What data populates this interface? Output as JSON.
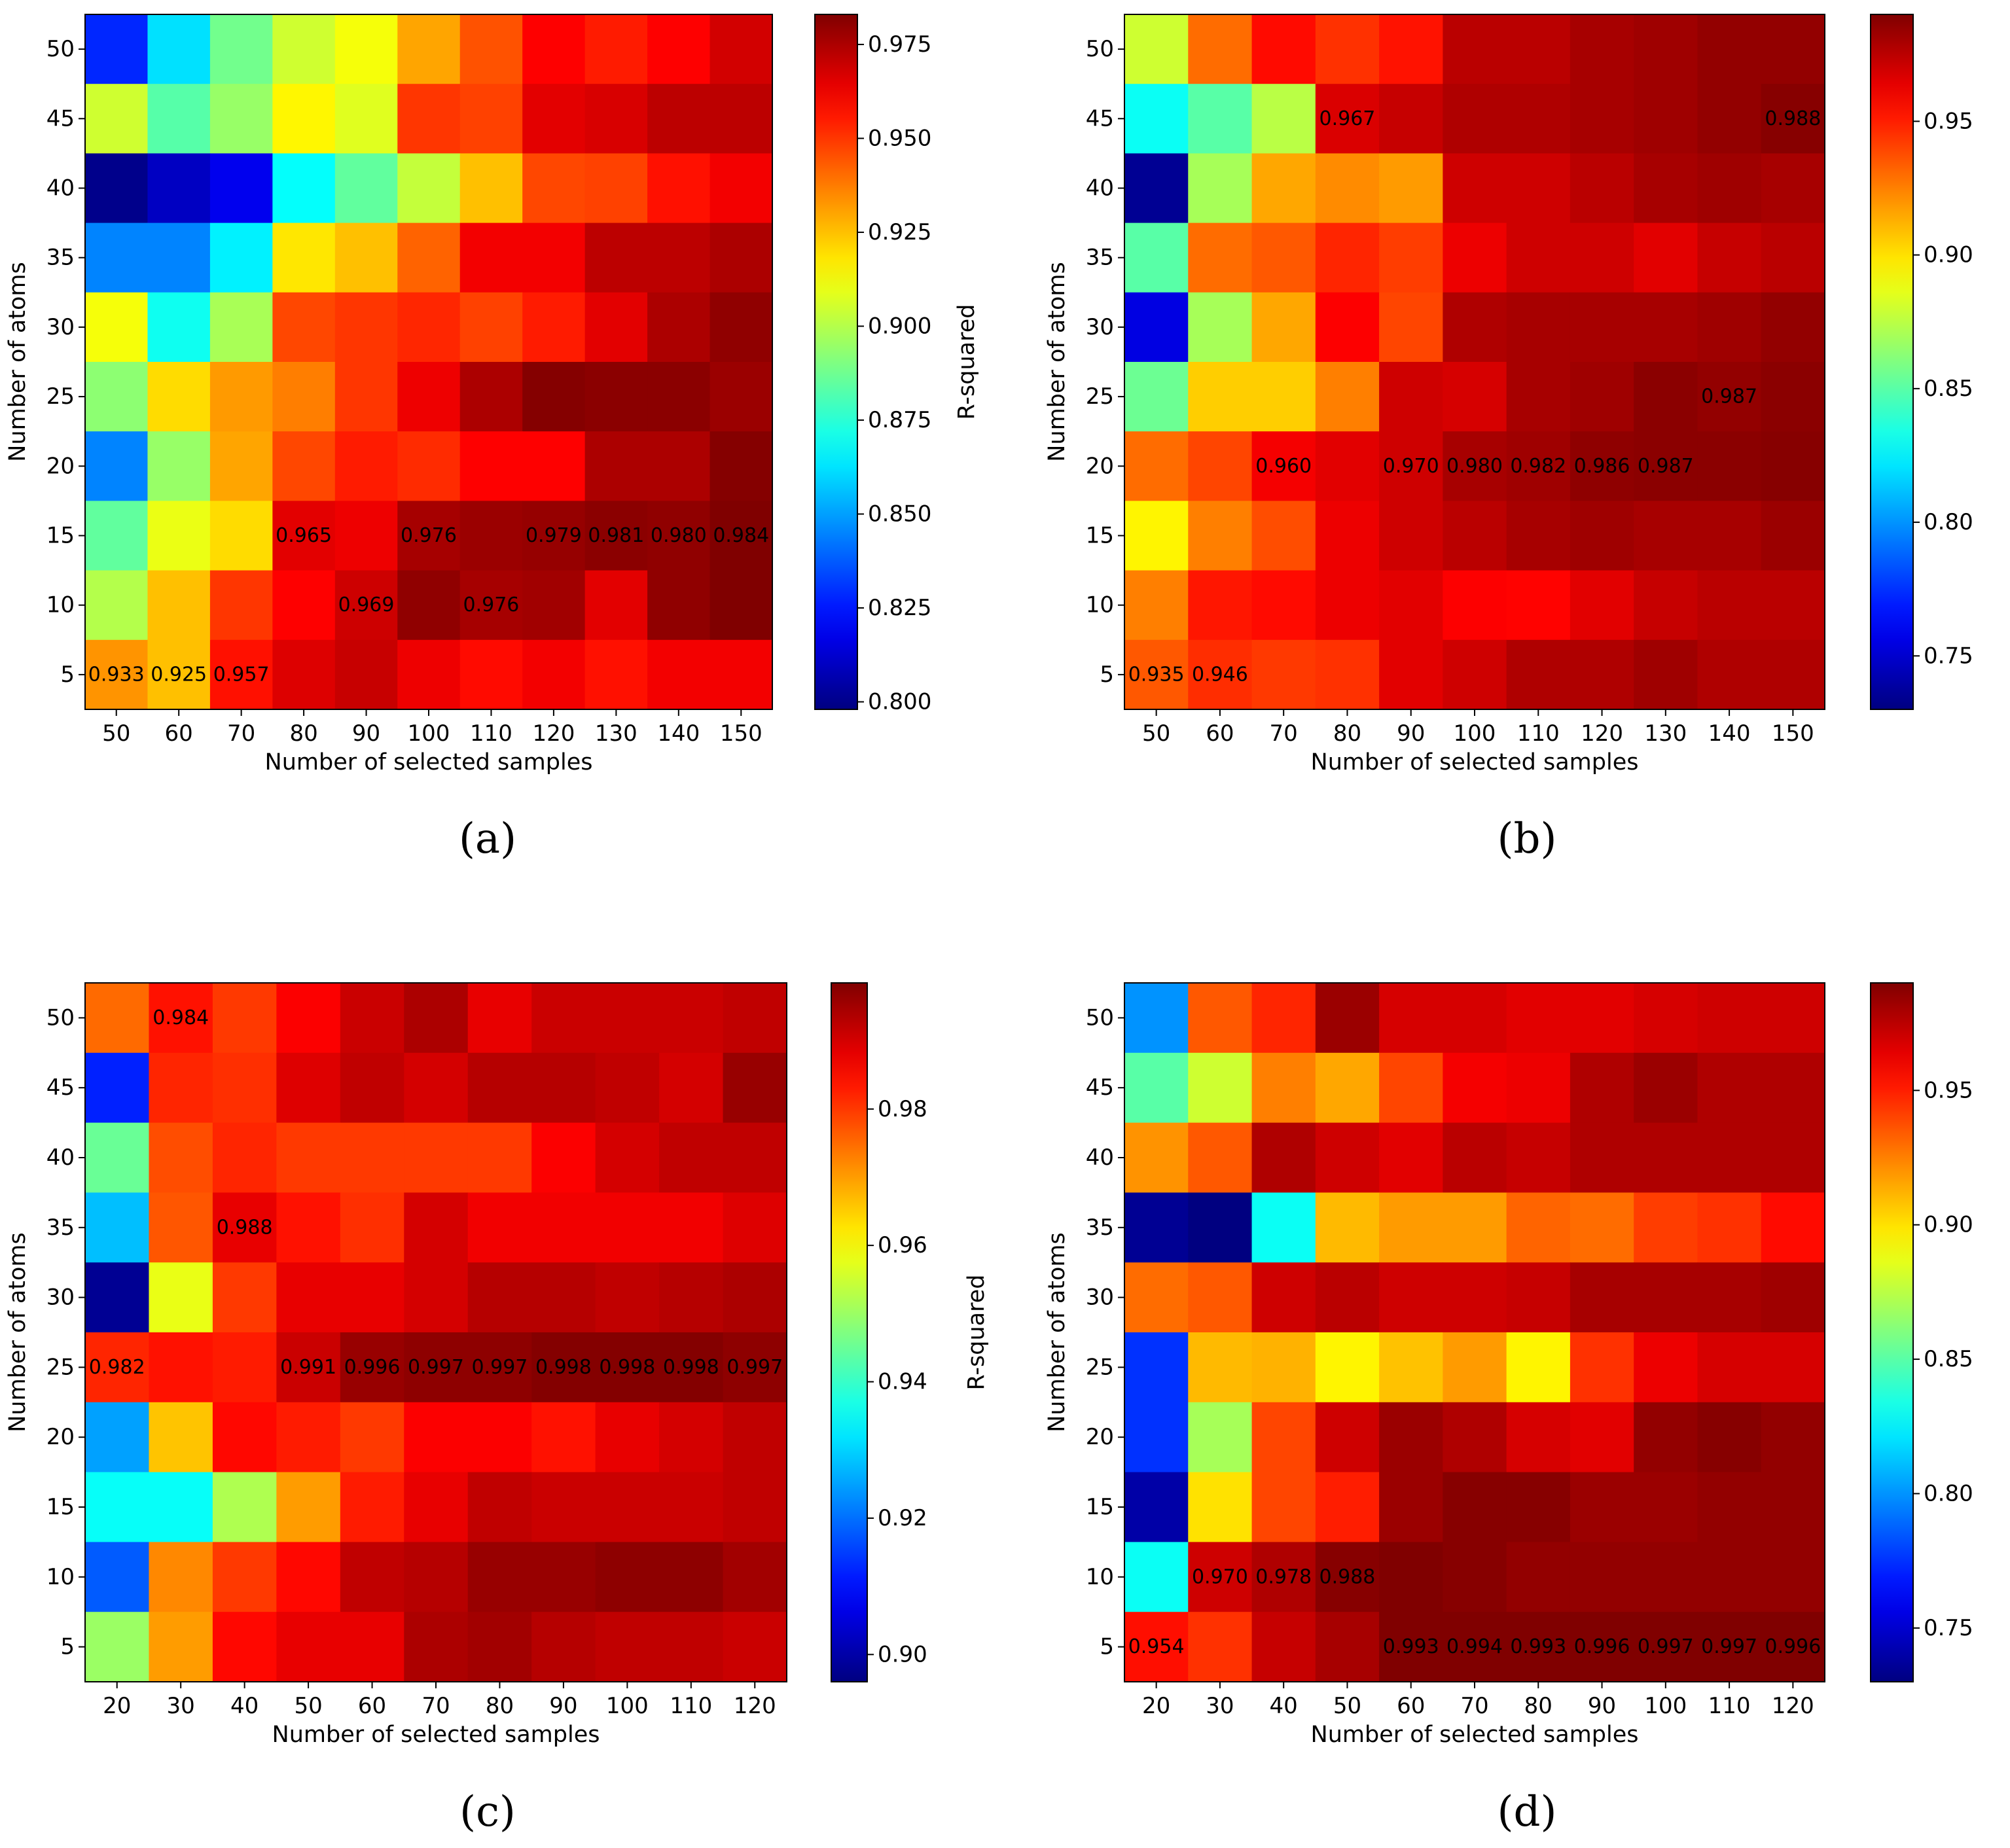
{
  "chart_data": [
    {
      "type": "heatmap",
      "panel_label": "(a)",
      "xlabel": "Number of selected samples",
      "ylabel": "Number of atoms",
      "colorbar_label": "R-squared",
      "x_categories": [
        "50",
        "60",
        "70",
        "80",
        "90",
        "100",
        "110",
        "120",
        "130",
        "140",
        "150"
      ],
      "y_categories": [
        "50",
        "45",
        "40",
        "35",
        "30",
        "25",
        "20",
        "15",
        "10",
        "5"
      ],
      "colorbar_range": [
        0.798,
        0.983
      ],
      "colorbar_ticks": [
        "0.975",
        "0.950",
        "0.925",
        "0.900",
        "0.875",
        "0.850",
        "0.825",
        "0.800"
      ],
      "values": [
        [
          0.828,
          0.862,
          0.888,
          0.905,
          0.912,
          0.93,
          0.945,
          0.96,
          0.955,
          0.96,
          0.968
        ],
        [
          0.905,
          0.883,
          0.895,
          0.915,
          0.908,
          0.95,
          0.948,
          0.965,
          0.967,
          0.972,
          0.972
        ],
        [
          0.8,
          0.81,
          0.818,
          0.868,
          0.885,
          0.903,
          0.925,
          0.947,
          0.948,
          0.957,
          0.962
        ],
        [
          0.845,
          0.845,
          0.865,
          0.918,
          0.925,
          0.942,
          0.962,
          0.962,
          0.972,
          0.972,
          0.975
        ],
        [
          0.912,
          0.87,
          0.898,
          0.947,
          0.95,
          0.953,
          0.948,
          0.955,
          0.965,
          0.975,
          0.98
        ],
        [
          0.893,
          0.92,
          0.932,
          0.937,
          0.95,
          0.963,
          0.975,
          0.982,
          0.981,
          0.981,
          0.978
        ],
        [
          0.845,
          0.895,
          0.93,
          0.947,
          0.955,
          0.952,
          0.96,
          0.96,
          0.975,
          0.975,
          0.982
        ],
        [
          0.885,
          0.91,
          0.92,
          0.965,
          0.963,
          0.976,
          0.978,
          0.979,
          0.981,
          0.98,
          0.984
        ],
        [
          0.9,
          0.925,
          0.95,
          0.96,
          0.969,
          0.98,
          0.976,
          0.977,
          0.965,
          0.98,
          0.983
        ],
        [
          0.933,
          0.925,
          0.957,
          0.966,
          0.97,
          0.963,
          0.958,
          0.962,
          0.957,
          0.962,
          0.962
        ]
      ],
      "annotations": [
        {
          "row": 7,
          "col": 3,
          "text": "0.965"
        },
        {
          "row": 7,
          "col": 5,
          "text": "0.976"
        },
        {
          "row": 7,
          "col": 7,
          "text": "0.979"
        },
        {
          "row": 7,
          "col": 8,
          "text": "0.981"
        },
        {
          "row": 7,
          "col": 9,
          "text": "0.980"
        },
        {
          "row": 7,
          "col": 10,
          "text": "0.984"
        },
        {
          "row": 8,
          "col": 4,
          "text": "0.969"
        },
        {
          "row": 8,
          "col": 6,
          "text": "0.976"
        },
        {
          "row": 9,
          "col": 0,
          "text": "0.933"
        },
        {
          "row": 9,
          "col": 1,
          "text": "0.925"
        },
        {
          "row": 9,
          "col": 2,
          "text": "0.957"
        }
      ]
    },
    {
      "type": "heatmap",
      "panel_label": "(b)",
      "xlabel": "Number of selected samples",
      "ylabel": "Number of atoms",
      "colorbar_label": "R-squared",
      "x_categories": [
        "50",
        "60",
        "70",
        "80",
        "90",
        "100",
        "110",
        "120",
        "130",
        "140",
        "150"
      ],
      "y_categories": [
        "50",
        "45",
        "40",
        "35",
        "30",
        "25",
        "20",
        "15",
        "10",
        "5"
      ],
      "colorbar_range": [
        0.73,
        0.99
      ],
      "colorbar_ticks": [
        "0.95",
        "0.90",
        "0.85",
        "0.80",
        "0.75"
      ],
      "values": [
        [
          0.88,
          0.93,
          0.955,
          0.945,
          0.953,
          0.975,
          0.975,
          0.98,
          0.982,
          0.985,
          0.985
        ],
        [
          0.83,
          0.85,
          0.875,
          0.967,
          0.972,
          0.978,
          0.978,
          0.98,
          0.982,
          0.985,
          0.988
        ],
        [
          0.735,
          0.87,
          0.915,
          0.922,
          0.918,
          0.97,
          0.97,
          0.975,
          0.98,
          0.982,
          0.98
        ],
        [
          0.85,
          0.93,
          0.935,
          0.948,
          0.942,
          0.962,
          0.97,
          0.97,
          0.965,
          0.972,
          0.975
        ],
        [
          0.755,
          0.87,
          0.915,
          0.958,
          0.94,
          0.978,
          0.98,
          0.98,
          0.98,
          0.982,
          0.985
        ],
        [
          0.855,
          0.905,
          0.905,
          0.925,
          0.97,
          0.968,
          0.98,
          0.982,
          0.987,
          0.985,
          0.987
        ],
        [
          0.93,
          0.94,
          0.96,
          0.965,
          0.97,
          0.98,
          0.982,
          0.986,
          0.987,
          0.987,
          0.988
        ],
        [
          0.895,
          0.925,
          0.938,
          0.962,
          0.97,
          0.975,
          0.98,
          0.982,
          0.98,
          0.98,
          0.983
        ],
        [
          0.925,
          0.952,
          0.955,
          0.962,
          0.965,
          0.958,
          0.957,
          0.965,
          0.972,
          0.975,
          0.975
        ],
        [
          0.935,
          0.946,
          0.943,
          0.945,
          0.965,
          0.97,
          0.978,
          0.978,
          0.982,
          0.978,
          0.978
        ]
      ],
      "annotations": [
        {
          "row": 1,
          "col": 3,
          "text": "0.967"
        },
        {
          "row": 1,
          "col": 10,
          "text": "0.988"
        },
        {
          "row": 5,
          "col": 9,
          "text": "0.987"
        },
        {
          "row": 6,
          "col": 2,
          "text": "0.960"
        },
        {
          "row": 6,
          "col": 4,
          "text": "0.970"
        },
        {
          "row": 6,
          "col": 5,
          "text": "0.980"
        },
        {
          "row": 6,
          "col": 6,
          "text": "0.982"
        },
        {
          "row": 6,
          "col": 7,
          "text": "0.986"
        },
        {
          "row": 6,
          "col": 8,
          "text": "0.987"
        },
        {
          "row": 9,
          "col": 0,
          "text": "0.935"
        },
        {
          "row": 9,
          "col": 1,
          "text": "0.946"
        }
      ]
    },
    {
      "type": "heatmap",
      "panel_label": "(c)",
      "xlabel": "Number of selected samples",
      "ylabel": "Number of atoms",
      "colorbar_label": "R-squared",
      "x_categories": [
        "20",
        "30",
        "40",
        "50",
        "60",
        "70",
        "80",
        "90",
        "100",
        "110",
        "120"
      ],
      "y_categories": [
        "50",
        "45",
        "40",
        "35",
        "30",
        "25",
        "20",
        "15",
        "10",
        "5"
      ],
      "colorbar_range": [
        0.896,
        0.9985
      ],
      "colorbar_ticks": [
        "0.98",
        "0.96",
        "0.94",
        "0.92",
        "0.90"
      ],
      "values": [
        [
          0.975,
          0.984,
          0.98,
          0.986,
          0.991,
          0.994,
          0.988,
          0.991,
          0.991,
          0.991,
          0.992
        ],
        [
          0.912,
          0.982,
          0.981,
          0.989,
          0.992,
          0.99,
          0.993,
          0.993,
          0.992,
          0.99,
          0.996
        ],
        [
          0.945,
          0.978,
          0.982,
          0.98,
          0.98,
          0.98,
          0.98,
          0.986,
          0.99,
          0.992,
          0.992
        ],
        [
          0.928,
          0.977,
          0.988,
          0.984,
          0.981,
          0.99,
          0.987,
          0.987,
          0.987,
          0.987,
          0.989
        ],
        [
          0.898,
          0.958,
          0.98,
          0.988,
          0.988,
          0.99,
          0.993,
          0.993,
          0.992,
          0.993,
          0.994
        ],
        [
          0.982,
          0.984,
          0.983,
          0.991,
          0.996,
          0.997,
          0.997,
          0.998,
          0.998,
          0.998,
          0.997
        ],
        [
          0.925,
          0.966,
          0.985,
          0.983,
          0.98,
          0.986,
          0.986,
          0.984,
          0.988,
          0.99,
          0.992
        ],
        [
          0.935,
          0.935,
          0.952,
          0.97,
          0.983,
          0.988,
          0.992,
          0.991,
          0.991,
          0.991,
          0.992
        ],
        [
          0.918,
          0.972,
          0.98,
          0.985,
          0.992,
          0.993,
          0.996,
          0.996,
          0.997,
          0.997,
          0.995
        ],
        [
          0.95,
          0.97,
          0.985,
          0.988,
          0.988,
          0.994,
          0.995,
          0.993,
          0.992,
          0.992,
          0.991
        ]
      ],
      "annotations": [
        {
          "row": 0,
          "col": 1,
          "text": "0.984"
        },
        {
          "row": 3,
          "col": 2,
          "text": "0.988"
        },
        {
          "row": 5,
          "col": 0,
          "text": "0.982"
        },
        {
          "row": 5,
          "col": 3,
          "text": "0.991"
        },
        {
          "row": 5,
          "col": 4,
          "text": "0.996"
        },
        {
          "row": 5,
          "col": 5,
          "text": "0.997"
        },
        {
          "row": 5,
          "col": 6,
          "text": "0.997"
        },
        {
          "row": 5,
          "col": 7,
          "text": "0.998"
        },
        {
          "row": 5,
          "col": 8,
          "text": "0.998"
        },
        {
          "row": 5,
          "col": 9,
          "text": "0.998"
        },
        {
          "row": 5,
          "col": 10,
          "text": "0.997"
        }
      ]
    },
    {
      "type": "heatmap",
      "panel_label": "(d)",
      "xlabel": "Number of selected samples",
      "ylabel": "Number of atoms",
      "colorbar_label": "R-squared",
      "x_categories": [
        "20",
        "30",
        "40",
        "50",
        "60",
        "70",
        "80",
        "90",
        "100",
        "110",
        "120"
      ],
      "y_categories": [
        "50",
        "45",
        "40",
        "35",
        "30",
        "25",
        "20",
        "15",
        "10",
        "5"
      ],
      "colorbar_range": [
        0.73,
        0.99
      ],
      "colorbar_ticks": [
        "0.95",
        "0.90",
        "0.85",
        "0.80",
        "0.75"
      ],
      "values": [
        [
          0.8,
          0.935,
          0.948,
          0.983,
          0.968,
          0.968,
          0.965,
          0.965,
          0.968,
          0.97,
          0.97
        ],
        [
          0.85,
          0.88,
          0.925,
          0.915,
          0.94,
          0.96,
          0.962,
          0.978,
          0.983,
          0.978,
          0.978
        ],
        [
          0.92,
          0.935,
          0.978,
          0.97,
          0.965,
          0.975,
          0.972,
          0.978,
          0.978,
          0.978,
          0.978
        ],
        [
          0.735,
          0.73,
          0.83,
          0.91,
          0.918,
          0.918,
          0.932,
          0.93,
          0.942,
          0.945,
          0.955
        ],
        [
          0.93,
          0.935,
          0.97,
          0.975,
          0.97,
          0.97,
          0.972,
          0.98,
          0.98,
          0.98,
          0.982
        ],
        [
          0.775,
          0.91,
          0.912,
          0.895,
          0.908,
          0.918,
          0.895,
          0.945,
          0.962,
          0.968,
          0.968
        ],
        [
          0.775,
          0.87,
          0.94,
          0.97,
          0.983,
          0.978,
          0.968,
          0.965,
          0.985,
          0.988,
          0.985
        ],
        [
          0.74,
          0.9,
          0.94,
          0.95,
          0.983,
          0.988,
          0.988,
          0.983,
          0.983,
          0.985,
          0.985
        ],
        [
          0.83,
          0.97,
          0.978,
          0.988,
          0.99,
          0.988,
          0.985,
          0.985,
          0.985,
          0.985,
          0.985
        ],
        [
          0.954,
          0.945,
          0.972,
          0.98,
          0.993,
          0.994,
          0.993,
          0.996,
          0.997,
          0.997,
          0.996
        ]
      ],
      "annotations": [
        {
          "row": 8,
          "col": 1,
          "text": "0.970"
        },
        {
          "row": 8,
          "col": 2,
          "text": "0.978"
        },
        {
          "row": 8,
          "col": 3,
          "text": "0.988"
        },
        {
          "row": 9,
          "col": 0,
          "text": "0.954"
        },
        {
          "row": 9,
          "col": 4,
          "text": "0.993"
        },
        {
          "row": 9,
          "col": 5,
          "text": "0.994"
        },
        {
          "row": 9,
          "col": 6,
          "text": "0.993"
        },
        {
          "row": 9,
          "col": 7,
          "text": "0.996"
        },
        {
          "row": 9,
          "col": 8,
          "text": "0.997"
        },
        {
          "row": 9,
          "col": 9,
          "text": "0.997"
        },
        {
          "row": 9,
          "col": 10,
          "text": "0.996"
        }
      ]
    }
  ]
}
